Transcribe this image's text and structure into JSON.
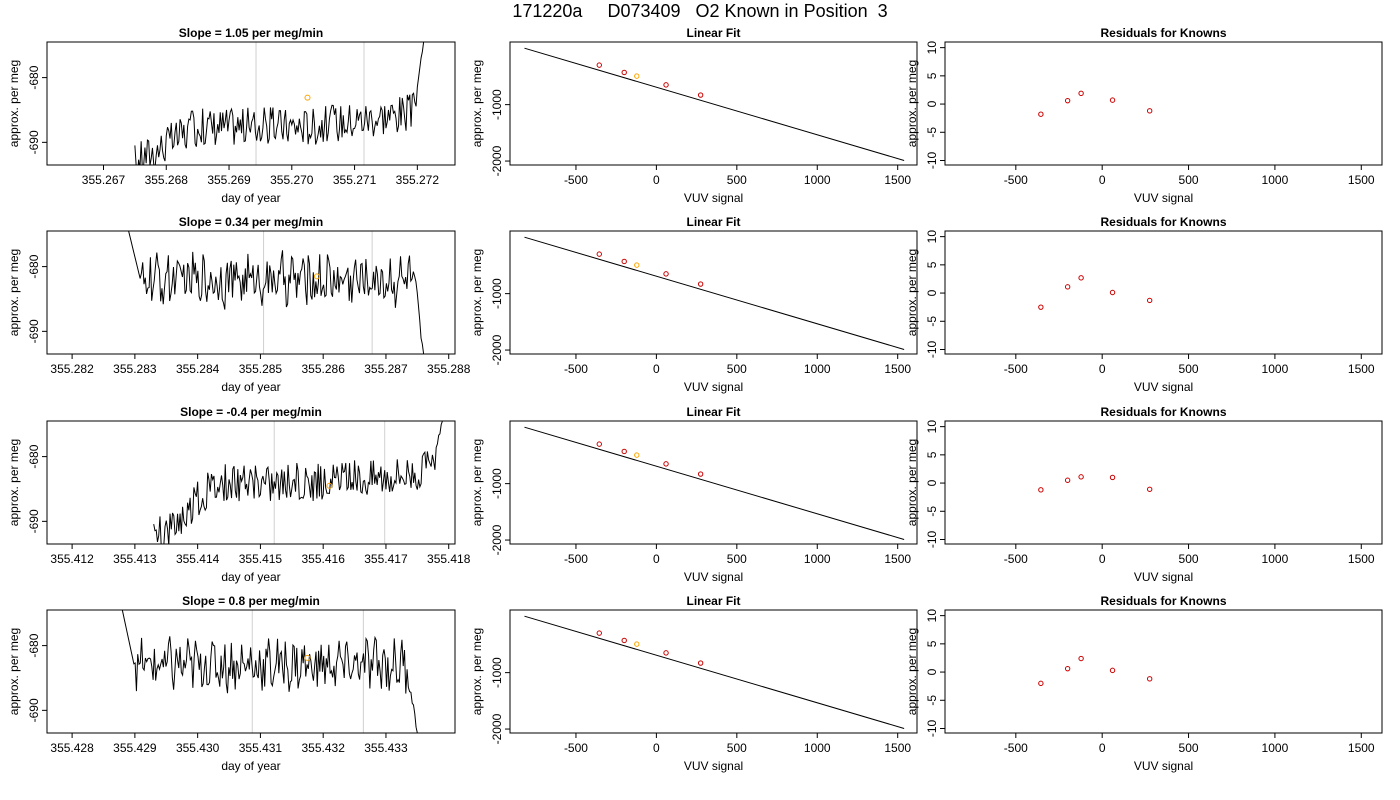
{
  "title": "171220a     D073409   O2 Known in Position  3",
  "colors": {
    "trace": "#000000",
    "window": "#d0d0d0",
    "highlight": "#ffa500",
    "known": "#cc0000"
  },
  "chart_data": [
    {
      "type": "line",
      "title": "Slope =  1.05  per meg/min",
      "xlabel": "day of year",
      "ylabel": "approx. per meg",
      "xlim": [
        355.2661,
        355.2726
      ],
      "ylim": [
        -693.5,
        -674.5
      ],
      "xticks": [
        "355.267",
        "355.268",
        "355.269",
        "355.270",
        "355.271",
        "355.272"
      ],
      "yticks": [
        "-690",
        "-680"
      ],
      "window_lines": [
        355.26943,
        355.27115
      ],
      "trace_start": 355.2675,
      "trace_end": 355.2721,
      "trace_end_value": -674.5,
      "trace_base": -687.5,
      "highlight_point": [
        355.27025,
        -683.1
      ]
    },
    {
      "type": "line",
      "title": "Slope =  0.34  per meg/min",
      "xlabel": "day of year",
      "ylabel": "approx. per meg",
      "xlim": [
        355.2816,
        355.2881
      ],
      "ylim": [
        -693.5,
        -674.5
      ],
      "xticks": [
        "355.282",
        "355.283",
        "355.284",
        "355.285",
        "355.286",
        "355.287",
        "355.288"
      ],
      "yticks": [
        "-690",
        "-680"
      ],
      "window_lines": [
        355.28505,
        355.28678
      ],
      "trace_start": 355.2829,
      "trace_end": 355.2876,
      "trace_start_value": -674.5,
      "trace_end_value": -693.5,
      "trace_base": -682.0,
      "highlight_point": [
        355.2859,
        -681.5
      ]
    },
    {
      "type": "line",
      "title": "Slope =  -0.4  per meg/min",
      "xlabel": "day of year",
      "ylabel": "approx. per meg",
      "xlim": [
        355.4116,
        355.4181
      ],
      "ylim": [
        -693.5,
        -674.5
      ],
      "xticks": [
        "355.412",
        "355.413",
        "355.414",
        "355.415",
        "355.416",
        "355.417",
        "355.418"
      ],
      "yticks": [
        "-690",
        "-680"
      ],
      "window_lines": [
        355.41522,
        355.41698
      ],
      "trace_start": 355.4133,
      "trace_end": 355.4179,
      "trace_end_value": -674.5,
      "trace_base": -684.0,
      "highlight_point": [
        355.4161,
        -684.5
      ]
    },
    {
      "type": "line",
      "title": "Slope =  0.8  per meg/min",
      "xlabel": "day of year",
      "ylabel": "approx. per meg",
      "xlim": [
        355.4276,
        355.4341
      ],
      "ylim": [
        -693.5,
        -674.5
      ],
      "xticks": [
        "355.428",
        "355.429",
        "355.430",
        "355.431",
        "355.432",
        "355.433"
      ],
      "yticks": [
        "-690",
        "-680"
      ],
      "window_lines": [
        355.43087,
        355.43264
      ],
      "trace_start": 355.4288,
      "trace_end": 355.4335,
      "trace_start_value": -674.5,
      "trace_end_value": -693.5,
      "trace_base": -683.0,
      "highlight_point": [
        355.43175,
        -681.9
      ]
    },
    {
      "type": "scatter",
      "title": "Linear Fit",
      "xlabel": "VUV signal",
      "ylabel": "approx. per meg",
      "xlim": [
        -910,
        1620
      ],
      "ylim": [
        -2070,
        110
      ],
      "xticks": [
        -500,
        0,
        500,
        1000,
        1500
      ],
      "yticks": [
        -2000,
        -1000
      ],
      "fit_line": [
        [
          -820,
          0
        ],
        [
          1540,
          -1990
        ]
      ],
      "points": [
        [
          -355,
          -300
        ],
        [
          -200,
          -430
        ],
        [
          -122,
          -495
        ],
        [
          60,
          -650
        ],
        [
          275,
          -830
        ]
      ],
      "highlight_index": 2
    },
    {
      "type": "scatter",
      "title": "Linear Fit",
      "xlabel": "VUV signal",
      "ylabel": "approx. per meg",
      "xlim": [
        -910,
        1620
      ],
      "ylim": [
        -2070,
        110
      ],
      "xticks": [
        -500,
        0,
        500,
        1000,
        1500
      ],
      "yticks": [
        -2000,
        -1000
      ],
      "fit_line": [
        [
          -820,
          0
        ],
        [
          1540,
          -1990
        ]
      ],
      "points": [
        [
          -355,
          -300
        ],
        [
          -200,
          -430
        ],
        [
          -122,
          -495
        ],
        [
          60,
          -650
        ],
        [
          275,
          -830
        ]
      ],
      "highlight_index": 2
    },
    {
      "type": "scatter",
      "title": "Linear Fit",
      "xlabel": "VUV signal",
      "ylabel": "approx. per meg",
      "xlim": [
        -910,
        1620
      ],
      "ylim": [
        -2070,
        110
      ],
      "xticks": [
        -500,
        0,
        500,
        1000,
        1500
      ],
      "yticks": [
        -2000,
        -1000
      ],
      "fit_line": [
        [
          -820,
          0
        ],
        [
          1540,
          -1990
        ]
      ],
      "points": [
        [
          -355,
          -300
        ],
        [
          -200,
          -430
        ],
        [
          -122,
          -495
        ],
        [
          60,
          -650
        ],
        [
          275,
          -830
        ]
      ],
      "highlight_index": 2
    },
    {
      "type": "scatter",
      "title": "Linear Fit",
      "xlabel": "VUV signal",
      "ylabel": "approx. per meg",
      "xlim": [
        -910,
        1620
      ],
      "ylim": [
        -2070,
        110
      ],
      "xticks": [
        -500,
        0,
        500,
        1000,
        1500
      ],
      "yticks": [
        -2000,
        -1000
      ],
      "fit_line": [
        [
          -820,
          0
        ],
        [
          1540,
          -1990
        ]
      ],
      "points": [
        [
          -355,
          -300
        ],
        [
          -200,
          -430
        ],
        [
          -122,
          -495
        ],
        [
          60,
          -650
        ],
        [
          275,
          -830
        ]
      ],
      "highlight_index": 2
    },
    {
      "type": "scatter",
      "title": "Residuals for Knowns",
      "xlabel": "VUV signal",
      "ylabel": "approx. per meg",
      "xlim": [
        -910,
        1620
      ],
      "ylim": [
        -10.8,
        11.0
      ],
      "xticks": [
        -500,
        0,
        500,
        1000,
        1500
      ],
      "yticks": [
        -10,
        -5,
        0,
        5,
        10
      ],
      "points": [
        [
          -355,
          -1.8
        ],
        [
          -200,
          0.6
        ],
        [
          -122,
          1.9
        ],
        [
          60,
          0.7
        ],
        [
          275,
          -1.2
        ]
      ]
    },
    {
      "type": "scatter",
      "title": "Residuals for Knowns",
      "xlabel": "VUV signal",
      "ylabel": "approx. per meg",
      "xlim": [
        -910,
        1620
      ],
      "ylim": [
        -10.8,
        11.0
      ],
      "xticks": [
        -500,
        0,
        500,
        1000,
        1500
      ],
      "yticks": [
        -10,
        -5,
        0,
        5,
        10
      ],
      "points": [
        [
          -355,
          -2.5
        ],
        [
          -200,
          1.1
        ],
        [
          -122,
          2.7
        ],
        [
          60,
          0.1
        ],
        [
          275,
          -1.3
        ]
      ]
    },
    {
      "type": "scatter",
      "title": "Residuals for Knowns",
      "xlabel": "VUV signal",
      "ylabel": "approx. per meg",
      "xlim": [
        -910,
        1620
      ],
      "ylim": [
        -10.8,
        11.0
      ],
      "xticks": [
        -500,
        0,
        500,
        1000,
        1500
      ],
      "yticks": [
        -10,
        -5,
        0,
        5,
        10
      ],
      "points": [
        [
          -355,
          -1.2
        ],
        [
          -200,
          0.5
        ],
        [
          -122,
          1.1
        ],
        [
          60,
          1.0
        ],
        [
          275,
          -1.1
        ]
      ]
    },
    {
      "type": "scatter",
      "title": "Residuals for Knowns",
      "xlabel": "VUV signal",
      "ylabel": "approx. per meg",
      "xlim": [
        -910,
        1620
      ],
      "ylim": [
        -10.8,
        11.0
      ],
      "xticks": [
        -500,
        0,
        500,
        1000,
        1500
      ],
      "yticks": [
        -10,
        -5,
        0,
        5,
        10
      ],
      "points": [
        [
          -355,
          -2.0
        ],
        [
          -200,
          0.6
        ],
        [
          -122,
          2.4
        ],
        [
          60,
          0.3
        ],
        [
          275,
          -1.2
        ]
      ]
    }
  ]
}
